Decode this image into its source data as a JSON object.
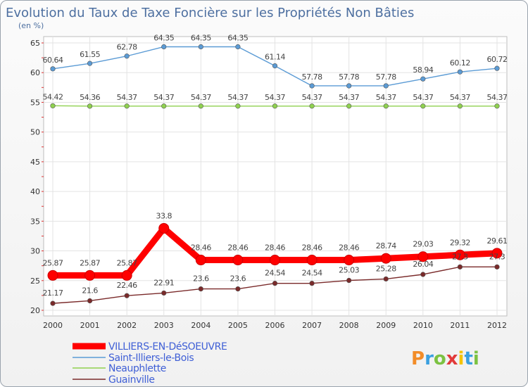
{
  "chart_data": {
    "type": "line",
    "title": "Evolution du Taux de Taxe Foncière sur les Propriétés Non Bâties",
    "subtitle": "(en %)",
    "xlabel": "",
    "ylabel": "",
    "x": [
      "2000",
      "2001",
      "2002",
      "2003",
      "2004",
      "2005",
      "2006",
      "2007",
      "2008",
      "2009",
      "2010",
      "2011",
      "2012"
    ],
    "ylim": [
      20,
      65
    ],
    "yticks": [
      "20",
      "25",
      "30",
      "35",
      "40",
      "45",
      "50",
      "55",
      "60",
      "65"
    ],
    "grid": true,
    "legend_position": "bottom-left",
    "series": [
      {
        "name": "VILLIERS-EN-DéSOEUVRE",
        "color": "#ff0000",
        "values": [
          25.87,
          25.87,
          25.87,
          33.8,
          28.46,
          28.46,
          28.46,
          28.46,
          28.46,
          28.74,
          29.03,
          29.32,
          29.61
        ],
        "labels": [
          "25.87",
          "25.87",
          "25.87",
          "33.8",
          "28.46",
          "28.46",
          "28.46",
          "28.46",
          "28.46",
          "28.74",
          "29.03",
          "29.32",
          "29.61"
        ]
      },
      {
        "name": "Saint-Illiers-le-Bois",
        "color": "#5b9bd5",
        "values": [
          60.64,
          61.55,
          62.78,
          64.35,
          64.35,
          64.35,
          61.14,
          57.78,
          57.78,
          57.78,
          58.94,
          60.12,
          60.72
        ],
        "labels": [
          "60.64",
          "61.55",
          "62.78",
          "64.35",
          "64.35",
          "64.35",
          "61.14",
          "57.78",
          "57.78",
          "57.78",
          "58.94",
          "60.12",
          "60.72"
        ]
      },
      {
        "name": "Neauphlette",
        "color": "#8fd14f",
        "values": [
          54.42,
          54.36,
          54.37,
          54.37,
          54.37,
          54.37,
          54.37,
          54.37,
          54.37,
          54.37,
          54.37,
          54.37,
          54.37
        ],
        "labels": [
          "54.42",
          "54.36",
          "54.37",
          "54.37",
          "54.37",
          "54.37",
          "54.37",
          "54.37",
          "54.37",
          "54.37",
          "54.37",
          "54.37",
          "54.37"
        ]
      },
      {
        "name": "Guainville",
        "color": "#7a2a2a",
        "values": [
          21.17,
          21.6,
          22.46,
          22.91,
          23.6,
          23.6,
          24.54,
          24.54,
          25.03,
          25.28,
          26.04,
          27.3,
          27.3
        ],
        "labels": [
          "21.17",
          "21.6",
          "22.46",
          "22.91",
          "23.6",
          "23.6",
          "24.54",
          "24.54",
          "25.03",
          "25.28",
          "26.04",
          "27.3",
          "27.3"
        ]
      }
    ]
  },
  "logo": {
    "text": "Proxiti"
  }
}
